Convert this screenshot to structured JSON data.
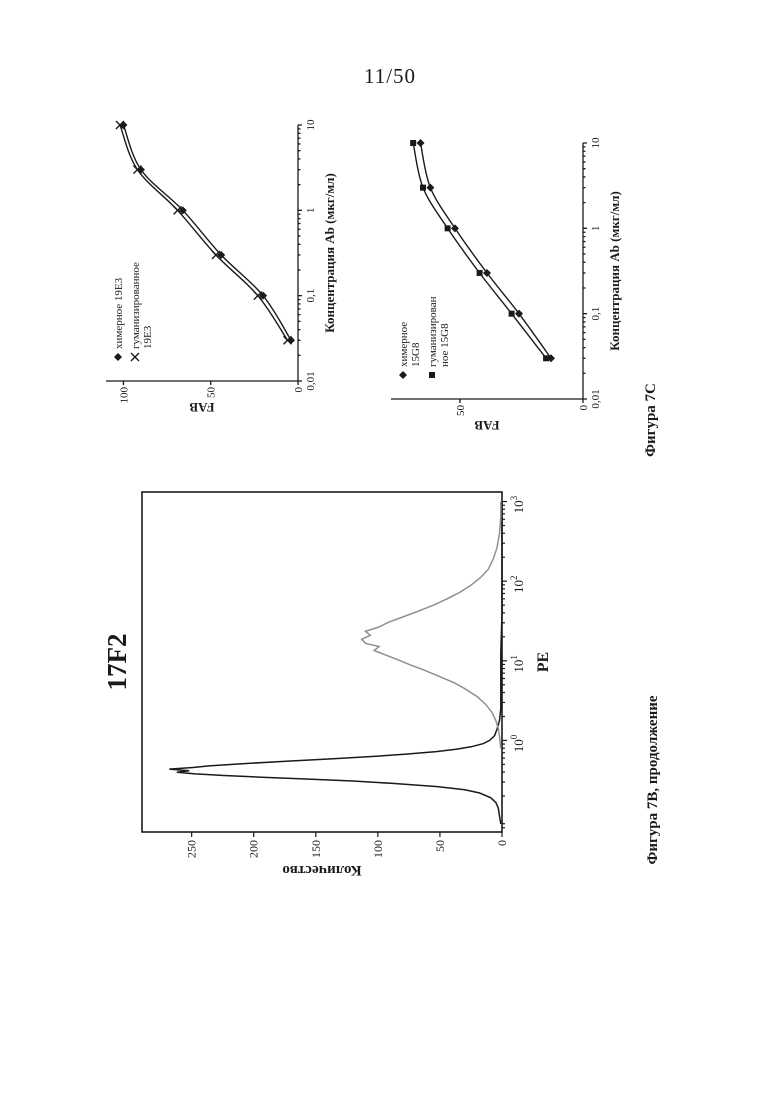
{
  "page": {
    "number": "11/50"
  },
  "captions": {
    "fab": "Фигура 7C",
    "histogram": "Фигура 7B, продолжение"
  },
  "chart_data": [
    {
      "id": "fab-19e3",
      "type": "line",
      "xlabel": "Концентрация Ab (мкг/мл)",
      "ylabel": "FAB",
      "x_scale": "log",
      "xlim_log": [
        -2,
        1
      ],
      "x_ticks": [
        {
          "log": -2,
          "label": "0,01"
        },
        {
          "log": -1,
          "label": "0,1"
        },
        {
          "log": 0,
          "label": "1"
        },
        {
          "log": 1,
          "label": "10"
        }
      ],
      "ylim": [
        0,
        110
      ],
      "y_ticks": [
        0,
        50,
        100
      ],
      "legend_position": "top-left",
      "series": [
        {
          "name": "химерное 19E3",
          "legend_lines": [
            "химерное 19E3"
          ],
          "marker": "diamond",
          "color": "#1a1a1a",
          "x": [
            0.03,
            0.1,
            0.3,
            1,
            3,
            10
          ],
          "values": [
            4,
            20,
            44,
            66,
            90,
            100
          ]
        },
        {
          "name": "гуманизированное 19E3",
          "legend_lines": [
            "гуманизированное",
            "19E3"
          ],
          "marker": "x",
          "color": "#1a1a1a",
          "x": [
            0.03,
            0.1,
            0.3,
            1,
            3,
            10
          ],
          "values": [
            6,
            23,
            47,
            69,
            92,
            102
          ]
        }
      ]
    },
    {
      "id": "fab-15g8",
      "type": "line",
      "xlabel": "Концентрация Ab (мкг/мл)",
      "ylabel": "FAB",
      "x_scale": "log",
      "xlim_log": [
        -2,
        1
      ],
      "x_ticks": [
        {
          "log": -2,
          "label": "0,01"
        },
        {
          "log": -1,
          "label": "0,1"
        },
        {
          "log": 0,
          "label": "1"
        },
        {
          "log": 1,
          "label": "10"
        }
      ],
      "ylim": [
        0,
        78
      ],
      "y_ticks": [
        0,
        50
      ],
      "legend_position": "top-left",
      "series": [
        {
          "name": "химерное 15G8",
          "legend_lines": [
            "химерное",
            "15G8"
          ],
          "marker": "diamond",
          "color": "#1a1a1a",
          "x": [
            0.03,
            0.1,
            0.3,
            1,
            3,
            10
          ],
          "values": [
            13,
            26,
            39,
            52,
            62,
            66
          ]
        },
        {
          "name": "гуманизированное 15G8",
          "legend_lines": [
            "гуманизирован",
            "ное 15G8"
          ],
          "marker": "square",
          "color": "#1a1a1a",
          "x": [
            0.03,
            0.1,
            0.3,
            1,
            3,
            10
          ],
          "values": [
            15,
            29,
            42,
            55,
            65,
            69
          ]
        }
      ]
    },
    {
      "id": "hist-17f2",
      "type": "histogram",
      "title": "17F2",
      "xlabel": "PE",
      "ylabel": "Количество",
      "x_scale": "log",
      "xlim_log": [
        -1.15,
        3.12
      ],
      "x_ticks": [
        {
          "log": 0,
          "base": "10",
          "exp": "0"
        },
        {
          "log": 1,
          "base": "10",
          "exp": "1"
        },
        {
          "log": 2,
          "base": "10",
          "exp": "2"
        },
        {
          "log": 3,
          "base": "10",
          "exp": "3"
        }
      ],
      "ylim": [
        0,
        290
      ],
      "y_ticks": [
        0,
        50,
        100,
        150,
        200,
        250
      ],
      "series": [
        {
          "name": "series_black",
          "color": "#1a1a1a",
          "points_logx": [
            [
              -1.05,
              1
            ],
            [
              -0.95,
              2
            ],
            [
              -0.85,
              3
            ],
            [
              -0.78,
              5
            ],
            [
              -0.72,
              9
            ],
            [
              -0.66,
              18
            ],
            [
              -0.62,
              30
            ],
            [
              -0.58,
              52
            ],
            [
              -0.54,
              88
            ],
            [
              -0.51,
              120
            ],
            [
              -0.48,
              163
            ],
            [
              -0.46,
              196
            ],
            [
              -0.44,
              224
            ],
            [
              -0.42,
              247
            ],
            [
              -0.4,
              262
            ],
            [
              -0.38,
              252
            ],
            [
              -0.36,
              268
            ],
            [
              -0.34,
              249
            ],
            [
              -0.32,
              236
            ],
            [
              -0.29,
              206
            ],
            [
              -0.26,
              172
            ],
            [
              -0.23,
              136
            ],
            [
              -0.2,
              103
            ],
            [
              -0.17,
              76
            ],
            [
              -0.14,
              53
            ],
            [
              -0.11,
              37
            ],
            [
              -0.08,
              25
            ],
            [
              -0.04,
              15
            ],
            [
              0,
              10
            ],
            [
              0.06,
              6
            ],
            [
              0.14,
              4
            ],
            [
              0.25,
              2
            ],
            [
              0.4,
              1
            ],
            [
              0.7,
              1
            ],
            [
              1.1,
              1
            ],
            [
              1.6,
              0
            ],
            [
              2.2,
              0
            ],
            [
              3.0,
              0
            ]
          ]
        },
        {
          "name": "series_gray",
          "color": "#8f8f8f",
          "points_logx": [
            [
              -0.1,
              1
            ],
            [
              0.05,
              2
            ],
            [
              0.15,
              3
            ],
            [
              0.25,
              5
            ],
            [
              0.35,
              8
            ],
            [
              0.45,
              13
            ],
            [
              0.55,
              20
            ],
            [
              0.65,
              30
            ],
            [
              0.72,
              38
            ],
            [
              0.8,
              50
            ],
            [
              0.88,
              62
            ],
            [
              0.95,
              74
            ],
            [
              1.02,
              85
            ],
            [
              1.08,
              95
            ],
            [
              1.13,
              103
            ],
            [
              1.18,
              99
            ],
            [
              1.22,
              110
            ],
            [
              1.27,
              113
            ],
            [
              1.32,
              106
            ],
            [
              1.37,
              110
            ],
            [
              1.42,
              100
            ],
            [
              1.48,
              92
            ],
            [
              1.55,
              80
            ],
            [
              1.62,
              68
            ],
            [
              1.7,
              55
            ],
            [
              1.78,
              44
            ],
            [
              1.86,
              34
            ],
            [
              1.95,
              25
            ],
            [
              2.05,
              17
            ],
            [
              2.15,
              11
            ],
            [
              2.28,
              7
            ],
            [
              2.42,
              4
            ],
            [
              2.6,
              2
            ],
            [
              2.8,
              1
            ],
            [
              3.0,
              1
            ]
          ]
        }
      ]
    }
  ]
}
